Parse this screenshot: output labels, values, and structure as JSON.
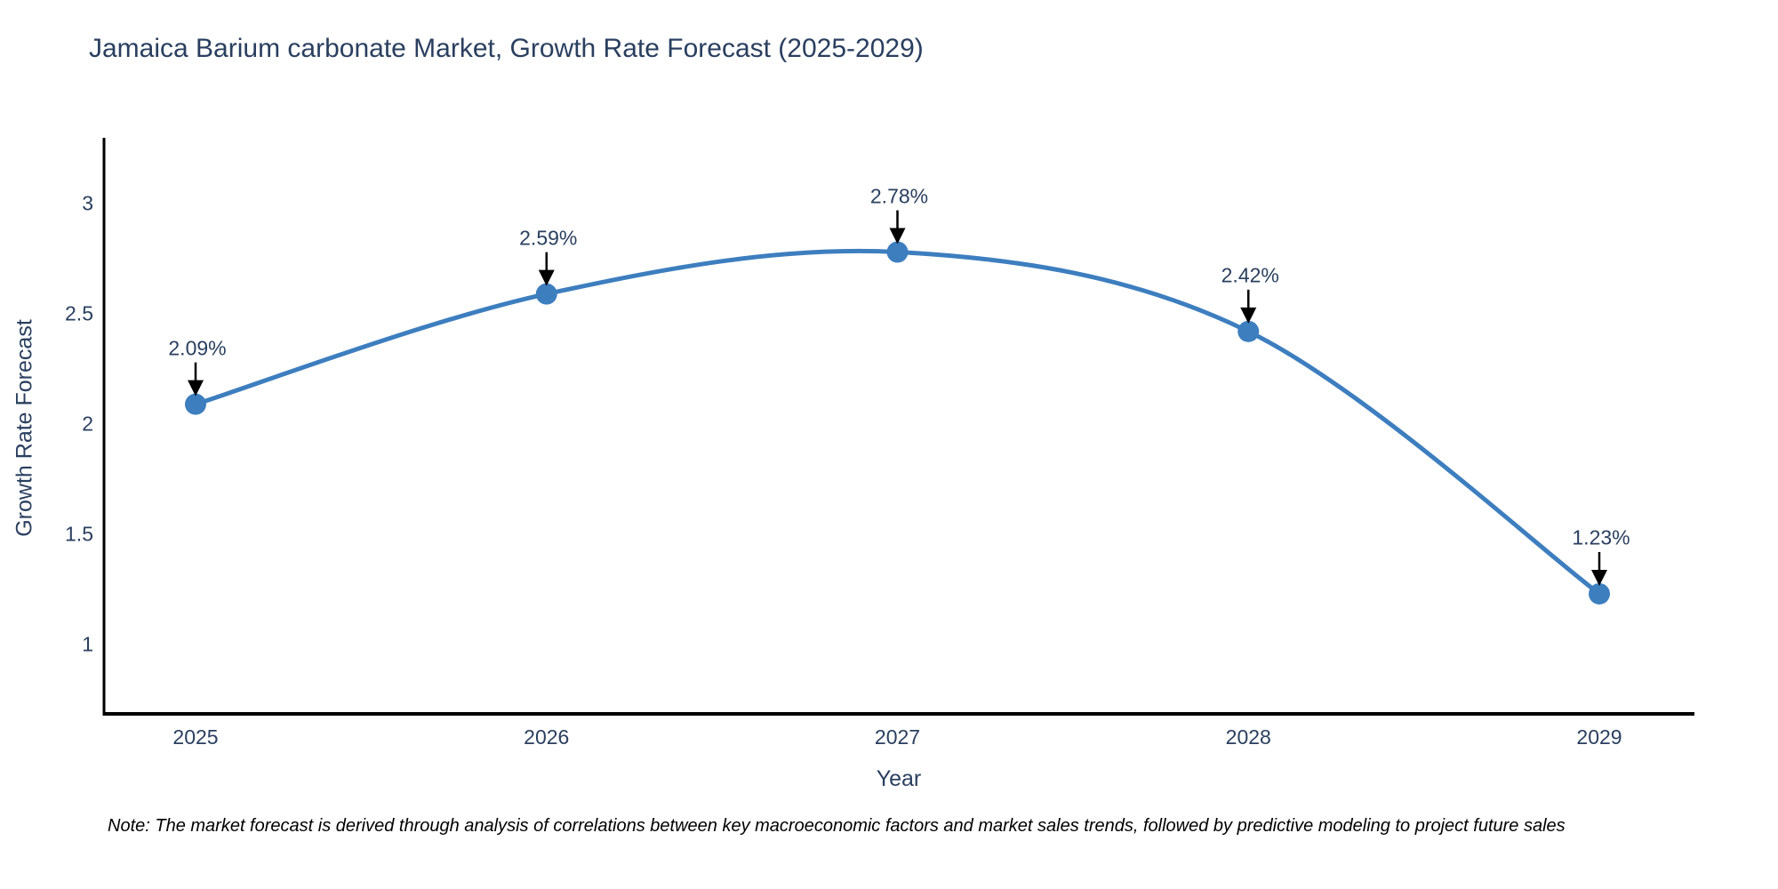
{
  "title": "Jamaica Barium carbonate Market, Growth Rate Forecast (2025-2029)",
  "note": "Note: The market forecast is derived through analysis of correlations between key macroeconomic factors and market sales trends, followed by predictive modeling to project future sales",
  "chart_data": {
    "type": "line",
    "title": "Jamaica Barium carbonate Market, Growth Rate Forecast (2025-2029)",
    "x": [
      2025,
      2026,
      2027,
      2028,
      2029
    ],
    "series": [
      {
        "name": "Growth Rate Forecast",
        "values": [
          2.09,
          2.59,
          2.78,
          2.42,
          1.23
        ]
      }
    ],
    "point_labels": [
      "2.09%",
      "2.59%",
      "2.78%",
      "2.42%",
      "1.23%"
    ],
    "xlabel": "Year",
    "ylabel": "Growth Rate Forecast",
    "xtick_labels": [
      "2025",
      "2026",
      "2027",
      "2028",
      "2029"
    ],
    "yticks": [
      3,
      2.5,
      2,
      1.5,
      1
    ],
    "ytick_labels": [
      "3",
      "2.5",
      "2",
      "1.5",
      "1"
    ],
    "ylim_visible": [
      0.69,
      3.3
    ],
    "grid": false,
    "legend_position": "none",
    "line_shape": "spline",
    "annotation_style": "value label above point with black arrow pointing down to marker",
    "colors": {
      "line": "#3d7ebf",
      "marker": "#3d7ebf",
      "text": "#2a3f5f",
      "axis": "#000000",
      "arrow": "#000000",
      "background": "#ffffff"
    }
  }
}
